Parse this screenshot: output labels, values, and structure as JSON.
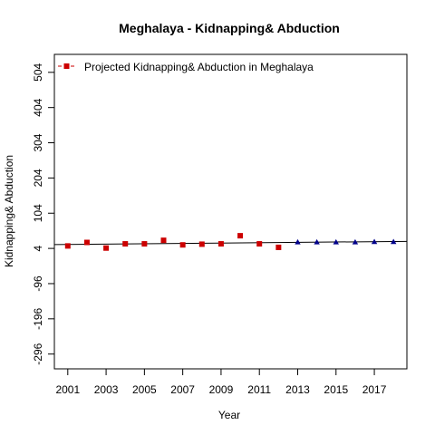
{
  "chart_data": {
    "type": "scatter",
    "title": "Meghalaya  -  Kidnapping& Abduction",
    "xlabel": "Year",
    "ylabel": "Kidnapping& Abduction",
    "xlim": [
      2000.3,
      2018.7
    ],
    "ylim": [
      -338,
      555
    ],
    "x_ticks": [
      2001,
      2003,
      2005,
      2007,
      2009,
      2011,
      2013,
      2015,
      2017
    ],
    "y_ticks": [
      -296,
      -196,
      -96,
      4,
      104,
      204,
      304,
      404,
      504
    ],
    "grid": false,
    "legend_position": "top-left",
    "colors": {
      "actual": "#cc0000",
      "projected": "#00008b",
      "trend": "#000000"
    },
    "series": [
      {
        "name": "",
        "marker": "square",
        "color": "#cc0000",
        "x": [
          2001,
          2002,
          2003,
          2004,
          2005,
          2006,
          2007,
          2008,
          2009,
          2010,
          2011,
          2012
        ],
        "y": [
          11,
          21,
          5,
          17,
          17,
          27,
          14,
          16,
          17,
          40,
          17,
          7
        ]
      },
      {
        "name": "Projected  Kidnapping& Abduction  in  Meghalaya",
        "marker": "triangle",
        "color": "#00008b",
        "x": [
          2013,
          2014,
          2015,
          2016,
          2017,
          2018
        ],
        "y": [
          22,
          22,
          22,
          22,
          23,
          23
        ]
      }
    ],
    "trend_line": {
      "x": [
        2000.3,
        2018.7
      ],
      "y": [
        15,
        24
      ]
    }
  }
}
